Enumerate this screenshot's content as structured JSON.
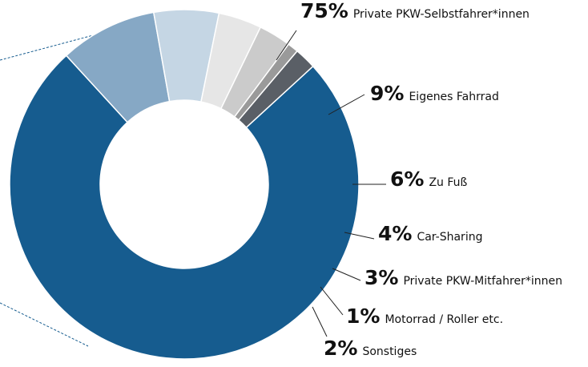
{
  "chart_data": {
    "type": "pie",
    "donut": true,
    "categories": [
      "Private PKW-Selbstfahrer*innen",
      "Eigenes Fahrrad",
      "Zu Fuß",
      "Car-Sharing",
      "Private PKW-Mitfahrer*innen",
      "Motorrad / Roller etc.",
      "Sonstiges"
    ],
    "values": [
      75,
      9,
      6,
      4,
      3,
      1,
      2
    ],
    "value_labels": [
      "75%",
      "9%",
      "6%",
      "4%",
      "3%",
      "1%",
      "2%"
    ],
    "colors": [
      "#165c8f",
      "#86a8c5",
      "#c5d6e4",
      "#e6e6e6",
      "#cbcbcb",
      "#9a9a9a",
      "#5a5f66"
    ]
  }
}
